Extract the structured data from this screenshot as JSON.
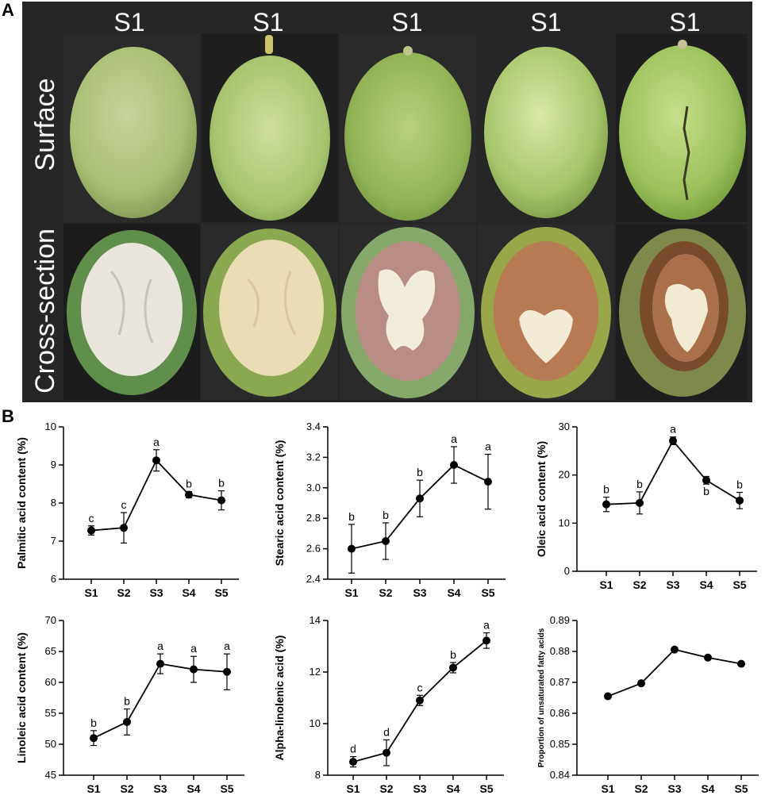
{
  "panel_a": {
    "letter": "A",
    "stage_headers": [
      "S1",
      "S1",
      "S1",
      "S1",
      "S1"
    ],
    "row_labels": {
      "surface": "Surface",
      "cross_section": "Cross-section"
    }
  },
  "panel_b": {
    "letter": "B"
  },
  "chart_data": [
    {
      "type": "line",
      "id": "palmitic",
      "categories": [
        "S1",
        "S2",
        "S3",
        "S4",
        "S5"
      ],
      "values": [
        7.28,
        7.35,
        9.12,
        8.22,
        8.07
      ],
      "errors": [
        0.12,
        0.4,
        0.28,
        0.08,
        0.25
      ],
      "letters": [
        "c",
        "c",
        "a",
        "b",
        "b"
      ],
      "letter_pos": [
        "above",
        "above",
        "above",
        "above",
        "above"
      ],
      "ylabel": "Palmitic acid content (%)",
      "ylim": [
        6,
        10
      ],
      "yticks": [
        6,
        7,
        8,
        9,
        10
      ],
      "ytick_labels": [
        "6",
        "7",
        "8",
        "9",
        "10"
      ]
    },
    {
      "type": "line",
      "id": "stearic",
      "categories": [
        "S1",
        "S2",
        "S3",
        "S4",
        "S5"
      ],
      "values": [
        2.6,
        2.65,
        2.93,
        3.15,
        3.04
      ],
      "errors": [
        0.16,
        0.12,
        0.12,
        0.12,
        0.18
      ],
      "letters": [
        "b",
        "b",
        "b",
        "a",
        "a"
      ],
      "letter_pos": [
        "above",
        "above",
        "above",
        "above",
        "above"
      ],
      "ylabel": "Stearic acid content (%)",
      "ylim": [
        2.4,
        3.4
      ],
      "yticks": [
        2.4,
        2.6,
        2.8,
        3.0,
        3.2,
        3.4
      ],
      "ytick_labels": [
        "2.4",
        "2.6",
        "2.8",
        "3.0",
        "3.2",
        "3.4"
      ]
    },
    {
      "type": "line",
      "id": "oleic",
      "categories": [
        "S1",
        "S2",
        "S3",
        "S4",
        "S5"
      ],
      "values": [
        13.9,
        14.2,
        27.1,
        18.9,
        14.7
      ],
      "errors": [
        1.5,
        2.3,
        0.8,
        0.8,
        1.7
      ],
      "letters": [
        "b",
        "b",
        "a",
        "b",
        "b"
      ],
      "letter_pos": [
        "above",
        "above",
        "above",
        "below",
        "above"
      ],
      "ylabel": "Oleic acid content (%)",
      "ylim": [
        0,
        30
      ],
      "yticks": [
        0,
        10,
        20,
        30
      ],
      "ytick_labels": [
        "0",
        "10",
        "20",
        "30"
      ]
    },
    {
      "type": "line",
      "id": "linoleic",
      "categories": [
        "S1",
        "S2",
        "S3",
        "S4",
        "S5"
      ],
      "values": [
        51.0,
        53.6,
        63.0,
        62.1,
        61.7
      ],
      "errors": [
        1.2,
        2.1,
        1.6,
        2.1,
        2.9
      ],
      "letters": [
        "b",
        "b",
        "a",
        "a",
        "a"
      ],
      "letter_pos": [
        "above",
        "above",
        "above",
        "above",
        "above"
      ],
      "ylabel": "Linoleic acid content (%)",
      "ylim": [
        45,
        70
      ],
      "yticks": [
        45,
        50,
        55,
        60,
        65,
        70
      ],
      "ytick_labels": [
        "45",
        "50",
        "55",
        "60",
        "65",
        "70"
      ]
    },
    {
      "type": "line",
      "id": "alpha_linolenic",
      "categories": [
        "S1",
        "S2",
        "S3",
        "S4",
        "S5"
      ],
      "values": [
        8.52,
        8.87,
        10.9,
        12.17,
        13.22
      ],
      "errors": [
        0.2,
        0.5,
        0.2,
        0.2,
        0.3
      ],
      "letters": [
        "d",
        "d",
        "c",
        "b",
        "a"
      ],
      "letter_pos": [
        "above",
        "above",
        "above",
        "above",
        "above"
      ],
      "ylabel": "Alpha-linolenic acid (%)",
      "ylim": [
        8,
        14
      ],
      "yticks": [
        8,
        10,
        12,
        14
      ],
      "ytick_labels": [
        "8",
        "10",
        "12",
        "14"
      ]
    },
    {
      "type": "line",
      "id": "unsaturated",
      "categories": [
        "S1",
        "S2",
        "S3",
        "S4",
        "S5"
      ],
      "values": [
        0.8655,
        0.8697,
        0.8806,
        0.878,
        0.876
      ],
      "errors": [
        0,
        0,
        0,
        0,
        0
      ],
      "letters": [],
      "letter_pos": [],
      "ylabel": "Proportion of unsaturated fatty acids",
      "ylim": [
        0.84,
        0.89
      ],
      "yticks": [
        0.84,
        0.85,
        0.86,
        0.87,
        0.88,
        0.89
      ],
      "ytick_labels": [
        "0.84",
        "0.85",
        "0.86",
        "0.87",
        "0.88",
        "0.89"
      ]
    }
  ]
}
